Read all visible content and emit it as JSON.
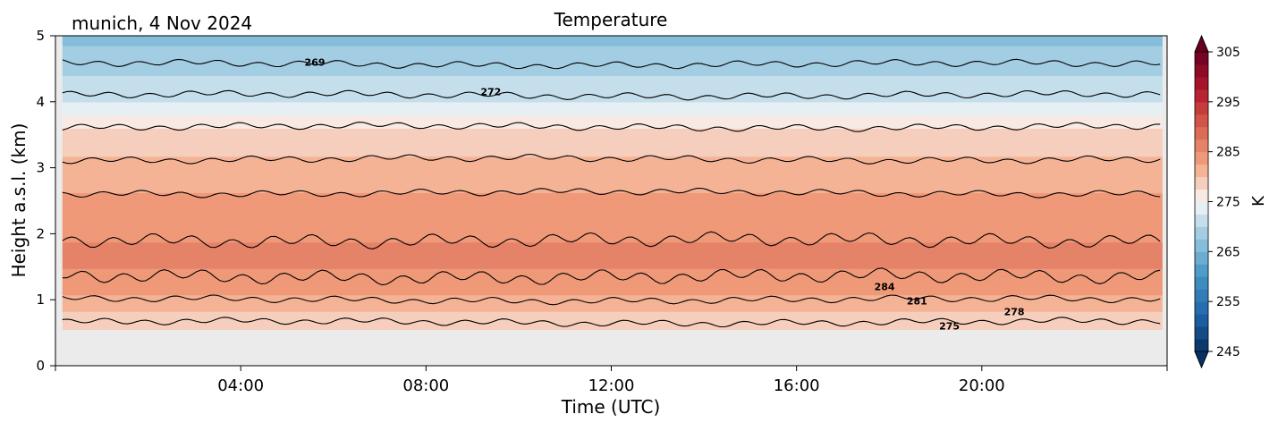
{
  "chart_data": {
    "type": "heatmap",
    "subtype": "filled-contour",
    "title": "Temperature",
    "location_date": "munich, 4 Nov 2024",
    "xlabel": "Time (UTC)",
    "ylabel": "Height a.s.l. (km)",
    "xlim": [
      0,
      24
    ],
    "ylim": [
      0,
      5
    ],
    "xticks": [
      4,
      8,
      12,
      16,
      20
    ],
    "xtick_labels": [
      "04:00",
      "08:00",
      "12:00",
      "16:00",
      "20:00"
    ],
    "yticks": [
      0,
      1,
      2,
      3,
      4,
      5
    ],
    "ytick_labels": [
      "0",
      "1",
      "2",
      "3",
      "4",
      "5"
    ],
    "data_time_range": [
      0.15,
      23.9
    ],
    "data_height_range": [
      0.55,
      5.0
    ],
    "no_data_color": "#ebebeb",
    "colorbar": {
      "label": "K",
      "vmin": 245,
      "vmax": 305,
      "levels_step": 2.5,
      "extend": "both",
      "colormap": "RdBu_r",
      "ticks": [
        245,
        255,
        265,
        275,
        285,
        295,
        305
      ],
      "tick_labels": [
        "245",
        "255",
        "265",
        "275",
        "285",
        "295",
        "305"
      ]
    },
    "temperature_profile": [
      {
        "height_km": 0.6,
        "temp_k": 277.5
      },
      {
        "height_km": 1.0,
        "temp_k": 282.0
      },
      {
        "height_km": 1.6,
        "temp_k": 285.8
      },
      {
        "height_km": 2.0,
        "temp_k": 284.6
      },
      {
        "height_km": 2.5,
        "temp_k": 283.0
      },
      {
        "height_km": 3.0,
        "temp_k": 280.8
      },
      {
        "height_km": 3.5,
        "temp_k": 278.6
      },
      {
        "height_km": 4.0,
        "temp_k": 272.5
      },
      {
        "height_km": 4.5,
        "temp_k": 269.3
      },
      {
        "height_km": 5.0,
        "temp_k": 266.8
      }
    ],
    "contour_lines": [
      {
        "level": 275,
        "base_height_km": 0.66
      },
      {
        "level": 278,
        "base_height_km": 1.0
      },
      {
        "level": 281,
        "base_height_km": 1.35
      },
      {
        "level": 284,
        "base_height_km": 1.9
      },
      {
        "level": 283,
        "base_height_km": 2.62
      },
      {
        "level": 280,
        "base_height_km": 3.13
      },
      {
        "level": 277,
        "base_height_km": 3.62
      },
      {
        "level": 272,
        "base_height_km": 4.1
      },
      {
        "level": 269,
        "base_height_km": 4.57
      }
    ],
    "contour_labels": [
      {
        "text": "269",
        "time": 5.6,
        "height_km": 4.6
      },
      {
        "text": "272",
        "time": 9.4,
        "height_km": 4.15
      },
      {
        "text": "284",
        "time": 17.9,
        "height_km": 1.2
      },
      {
        "text": "281",
        "time": 18.6,
        "height_km": 0.98
      },
      {
        "text": "278",
        "time": 20.7,
        "height_km": 0.82
      },
      {
        "text": "275",
        "time": 19.3,
        "height_km": 0.6
      }
    ]
  }
}
